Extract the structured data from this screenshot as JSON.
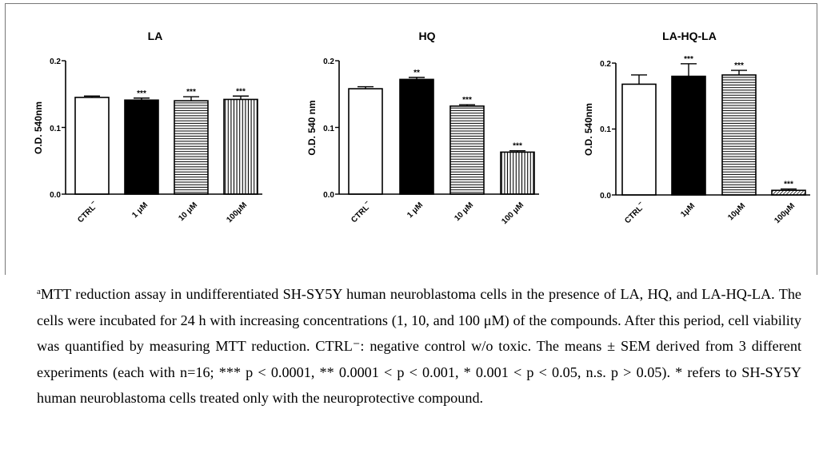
{
  "chart_data": [
    {
      "type": "bar",
      "title": "LA",
      "ylabel": "O.D. 540nm",
      "yticks": [
        "0.0",
        "0.1",
        "0.2"
      ],
      "ylim": [
        0,
        0.2
      ],
      "categories": [
        "CTRL",
        "1 μM",
        "10 μM",
        "100μM"
      ],
      "category_superscript": [
        "−",
        "",
        "",
        ""
      ],
      "values": [
        0.145,
        0.141,
        0.14,
        0.142
      ],
      "errors": [
        0.002,
        0.003,
        0.006,
        0.005
      ],
      "significance": [
        "",
        "***",
        "***",
        "***"
      ],
      "fills": [
        "white",
        "black",
        "hlines",
        "vlines"
      ]
    },
    {
      "type": "bar",
      "title": "HQ",
      "ylabel": "O.D. 540 nm",
      "yticks": [
        "0.0",
        "0.1",
        "0.2"
      ],
      "ylim": [
        0,
        0.2
      ],
      "categories": [
        "CTRL",
        "1 μM",
        "10 μM",
        "100 μM"
      ],
      "category_superscript": [
        "−",
        "",
        "",
        ""
      ],
      "values": [
        0.158,
        0.172,
        0.132,
        0.063
      ],
      "errors": [
        0.003,
        0.003,
        0.002,
        0.002
      ],
      "significance": [
        "",
        "**",
        "***",
        "***"
      ],
      "fills": [
        "white",
        "black",
        "hlines",
        "vlines"
      ]
    },
    {
      "type": "bar",
      "title": "LA-HQ-LA",
      "ylabel": "O.D. 540nm",
      "yticks": [
        "0.0",
        "0.1",
        "0.2"
      ],
      "ylim": [
        0,
        0.2
      ],
      "categories": [
        "CTRL",
        "1μM",
        "10μM",
        "100μM"
      ],
      "category_superscript": [
        "−",
        "",
        "",
        ""
      ],
      "values": [
        0.168,
        0.18,
        0.182,
        0.007
      ],
      "errors": [
        0.014,
        0.019,
        0.007,
        0.002
      ],
      "significance": [
        "",
        "***",
        "***",
        "***"
      ],
      "fills": [
        "white",
        "black",
        "hlines",
        "diag"
      ]
    }
  ],
  "caption": {
    "superscript": "a",
    "text": "MTT reduction assay in undifferentiated SH-SY5Y human neuroblastoma cells in the presence of LA, HQ, and LA-HQ-LA. The cells were incubated for 24 h with increasing concentrations (1, 10, and 100 μM) of the compounds. After this period, cell viability was quantified by measuring MTT reduction. CTRL⁻: negative control w/o toxic. The means ± SEM derived from 3 different experiments (each with n=16; *** p < 0.0001, ** 0.0001 < p < 0.001, * 0.001 < p < 0.05, n.s. p > 0.05). * refers to SH-SY5Y human neuroblastoma cells treated only with the neuroprotective compound."
  }
}
